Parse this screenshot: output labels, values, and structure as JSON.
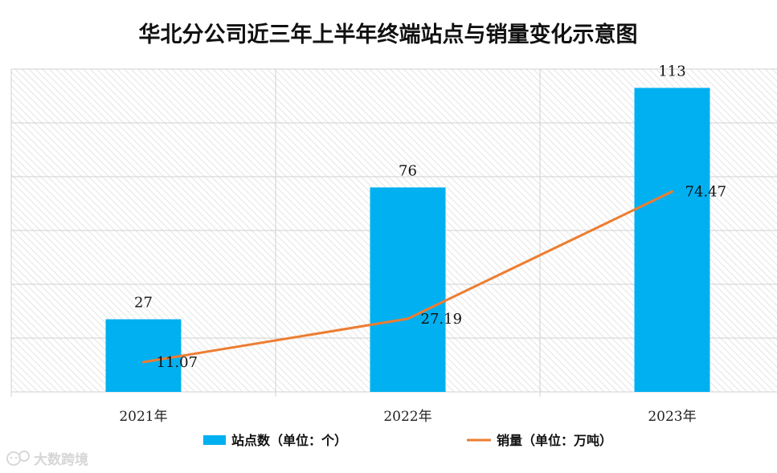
{
  "chart_data": {
    "type": "bar",
    "title": "华北分公司近三年上半年终端站点与销量变化示意图",
    "categories": [
      "2021年",
      "2022年",
      "2023年"
    ],
    "series": [
      {
        "name": "站点数（单位：个）",
        "kind": "bar",
        "values": [
          27,
          76,
          113
        ],
        "value_labels": [
          "27",
          "76",
          "113"
        ]
      },
      {
        "name": "销量（单位：万吨）",
        "kind": "line",
        "values": [
          11.07,
          27.19,
          74.47
        ],
        "value_labels": [
          "11.07",
          "27.19",
          "74.47"
        ]
      }
    ],
    "ylim": [
      0,
      120
    ],
    "grid": true,
    "legend_position": "bottom",
    "xlabel": "",
    "ylabel": ""
  },
  "colors": {
    "bar": "#00b0f0",
    "line": "#ed7d31",
    "grid": "#d0d0d0",
    "hatch": "#e6e6e6"
  },
  "watermark": {
    "text": "大数跨境",
    "icon": "chat-bubble-icon"
  }
}
